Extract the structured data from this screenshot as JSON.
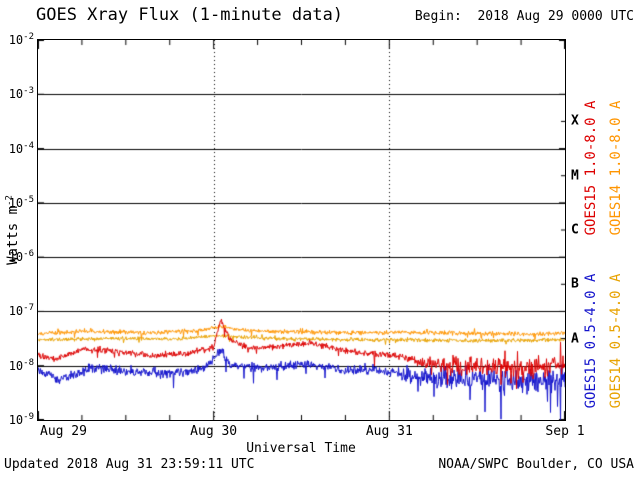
{
  "header": {
    "title": "GOES Xray Flux (1-minute data)",
    "begin_label": "Begin:  2018 Aug 29 0000 UTC"
  },
  "footer": {
    "updated": "Updated 2018 Aug 31 23:59:11 UTC",
    "source": "NOAA/SWPC Boulder, CO USA"
  },
  "chart_data": {
    "type": "line",
    "title": "GOES Xray Flux (1-minute data)",
    "xlabel": "Universal Time",
    "ylabel": "Watts m-2",
    "x_ticks": [
      "Aug 29",
      "Aug 30",
      "Aug 31",
      "Sep 1"
    ],
    "x_tick_days": [
      0,
      1,
      2,
      3
    ],
    "x_range_days": [
      0,
      3
    ],
    "y_scale": "log10",
    "y_log_range": [
      -2,
      -9
    ],
    "y_tick_base": 10,
    "y_tick_exponents": [
      -2,
      -3,
      -4,
      -5,
      -6,
      -7,
      -8,
      -9
    ],
    "grid": {
      "horizontal": "solid black per decade",
      "vertical": "dotted black per day"
    },
    "background_color": "#ffffff",
    "axis_color": "#000000",
    "legend_position": "right-rotated",
    "flare_classes": [
      {
        "label": "X",
        "log_center": -3.5
      },
      {
        "label": "M",
        "log_center": -4.5
      },
      {
        "label": "C",
        "log_center": -5.5
      },
      {
        "label": "B",
        "log_center": -6.5
      },
      {
        "label": "A",
        "log_center": -7.5
      }
    ],
    "series": [
      {
        "name": "GOES15 1.0-8.0 A",
        "satellite": "GOES15",
        "channel": "1.0-8.0 A",
        "color": "#dd0000",
        "points": [
          [
            0,
            1.6e-08
          ],
          [
            0.1,
            1.3e-08
          ],
          [
            0.25,
            2e-08
          ],
          [
            0.45,
            1.9e-08
          ],
          [
            0.65,
            1.5e-08
          ],
          [
            0.85,
            1.7e-08
          ],
          [
            1.0,
            2.2e-08
          ],
          [
            1.04,
            7.5e-08
          ],
          [
            1.09,
            3e-08
          ],
          [
            1.2,
            2.1e-08
          ],
          [
            1.4,
            2.3e-08
          ],
          [
            1.55,
            2.6e-08
          ],
          [
            1.75,
            1.9e-08
          ],
          [
            1.95,
            1.6e-08
          ],
          [
            2.05,
            1.5e-08
          ],
          [
            2.2,
            1.1e-08
          ],
          [
            2.4,
            1e-08
          ],
          [
            2.6,
            9.5e-09
          ],
          [
            2.8,
            9e-09
          ],
          [
            3.0,
            1e-08
          ]
        ],
        "noise_log10": [
          [
            0,
            0.07
          ],
          [
            2.1,
            0.07
          ],
          [
            2.35,
            0.2
          ],
          [
            3,
            0.24
          ]
        ]
      },
      {
        "name": "GOES14 1.0-8.0 A",
        "satellite": "GOES14",
        "channel": "1.0-8.0 A",
        "color": "#ff9500",
        "points": [
          [
            0,
            3.9e-08
          ],
          [
            0.3,
            4.3e-08
          ],
          [
            0.6,
            4e-08
          ],
          [
            0.9,
            4.4e-08
          ],
          [
            1.04,
            5.2e-08
          ],
          [
            1.2,
            4.4e-08
          ],
          [
            1.5,
            4.2e-08
          ],
          [
            1.8,
            4e-08
          ],
          [
            2.1,
            4.1e-08
          ],
          [
            2.5,
            3.9e-08
          ],
          [
            2.8,
            3.8e-08
          ],
          [
            3.0,
            4e-08
          ]
        ],
        "noise_log10": [
          [
            0,
            0.045
          ],
          [
            3,
            0.05
          ]
        ]
      },
      {
        "name": "GOES15 0.5-4.0 A",
        "satellite": "GOES15",
        "channel": "0.5-4.0 A",
        "color": "#1414cc",
        "points": [
          [
            0,
            8e-09
          ],
          [
            0.12,
            5.5e-09
          ],
          [
            0.3,
            9e-09
          ],
          [
            0.5,
            8e-09
          ],
          [
            0.75,
            7e-09
          ],
          [
            0.95,
            9e-09
          ],
          [
            1.04,
            2e-08
          ],
          [
            1.1,
            1e-08
          ],
          [
            1.3,
            9e-09
          ],
          [
            1.5,
            1.1e-08
          ],
          [
            1.75,
            8.5e-09
          ],
          [
            2.0,
            8e-09
          ],
          [
            2.15,
            6e-09
          ],
          [
            2.4,
            6.5e-09
          ],
          [
            2.6,
            5.5e-09
          ],
          [
            2.8,
            5e-09
          ],
          [
            3.0,
            6e-09
          ]
        ],
        "noise_log10": [
          [
            0,
            0.1
          ],
          [
            2.0,
            0.1
          ],
          [
            2.35,
            0.26
          ],
          [
            3,
            0.3
          ]
        ]
      },
      {
        "name": "GOES14 0.5-4.0 A",
        "satellite": "GOES14",
        "channel": "0.5-4.0 A",
        "color": "#e8a200",
        "points": [
          [
            0,
            3e-08
          ],
          [
            0.4,
            3.2e-08
          ],
          [
            0.8,
            3.1e-08
          ],
          [
            1.04,
            3.6e-08
          ],
          [
            1.3,
            3.2e-08
          ],
          [
            1.7,
            3e-08
          ],
          [
            2.1,
            3e-08
          ],
          [
            2.5,
            2.9e-08
          ],
          [
            3.0,
            3e-08
          ]
        ],
        "noise_log10": [
          [
            0,
            0.04
          ],
          [
            3,
            0.045
          ]
        ]
      }
    ]
  }
}
